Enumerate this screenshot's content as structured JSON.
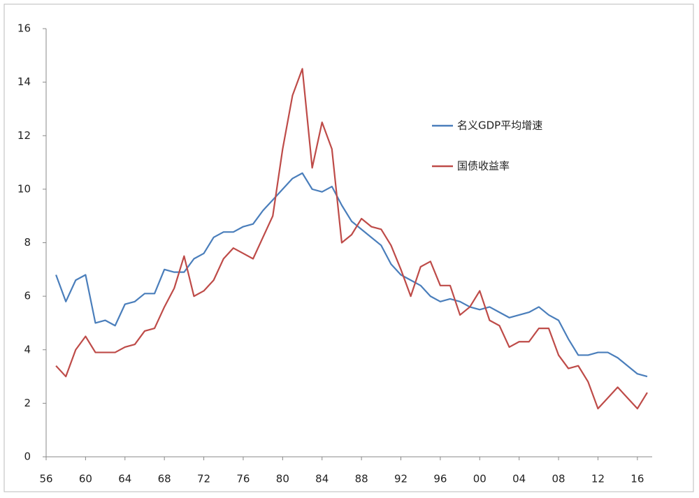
{
  "chart_data": {
    "type": "line",
    "x": [
      1957,
      1958,
      1959,
      1960,
      1961,
      1962,
      1963,
      1964,
      1965,
      1966,
      1967,
      1968,
      1969,
      1970,
      1971,
      1972,
      1973,
      1974,
      1975,
      1976,
      1977,
      1978,
      1979,
      1980,
      1981,
      1982,
      1983,
      1984,
      1985,
      1986,
      1987,
      1988,
      1989,
      1990,
      1991,
      1992,
      1993,
      1994,
      1995,
      1996,
      1997,
      1998,
      1999,
      2000,
      2001,
      2002,
      2003,
      2004,
      2005,
      2006,
      2007,
      2008,
      2009,
      2010,
      2011,
      2012,
      2013,
      2014,
      2015,
      2016,
      2017
    ],
    "series": [
      {
        "name": "名义GDP平均增速",
        "color": "#4a7ebb",
        "values": [
          6.8,
          5.8,
          6.6,
          6.8,
          5.0,
          5.1,
          4.9,
          5.7,
          5.8,
          6.1,
          6.1,
          7.0,
          6.9,
          6.9,
          7.4,
          7.6,
          8.2,
          8.4,
          8.4,
          8.6,
          8.7,
          9.2,
          9.6,
          10.0,
          10.4,
          10.6,
          10.0,
          9.9,
          10.1,
          9.4,
          8.8,
          8.5,
          8.2,
          7.9,
          7.2,
          6.8,
          6.6,
          6.4,
          6.0,
          5.8,
          5.9,
          5.8,
          5.6,
          5.5,
          5.6,
          5.4,
          5.2,
          5.3,
          5.4,
          5.6,
          5.3,
          5.1,
          4.4,
          3.8,
          3.8,
          3.9,
          3.9,
          3.7,
          3.4,
          3.1,
          3.0
        ]
      },
      {
        "name": "国债收益率",
        "color": "#be4b48",
        "values": [
          3.4,
          3.0,
          4.0,
          4.5,
          3.9,
          3.9,
          3.9,
          4.1,
          4.2,
          4.7,
          4.8,
          5.6,
          6.3,
          7.5,
          6.0,
          6.2,
          6.6,
          7.4,
          7.8,
          7.6,
          7.4,
          8.2,
          9.0,
          11.5,
          13.5,
          14.5,
          10.8,
          12.5,
          11.5,
          8.0,
          8.3,
          8.9,
          8.6,
          8.5,
          7.9,
          7.0,
          6.0,
          7.1,
          7.3,
          6.4,
          6.4,
          5.3,
          5.6,
          6.2,
          5.1,
          4.9,
          4.1,
          4.3,
          4.3,
          4.8,
          4.8,
          3.8,
          3.3,
          3.4,
          2.8,
          1.8,
          2.2,
          2.6,
          2.2,
          1.8,
          2.4
        ]
      }
    ],
    "xlim": [
      1956,
      2017.5
    ],
    "xticks": [
      {
        "value": 1956,
        "label": "56"
      },
      {
        "value": 1960,
        "label": "60"
      },
      {
        "value": 1964,
        "label": "64"
      },
      {
        "value": 1968,
        "label": "68"
      },
      {
        "value": 1972,
        "label": "72"
      },
      {
        "value": 1976,
        "label": "76"
      },
      {
        "value": 1980,
        "label": "80"
      },
      {
        "value": 1984,
        "label": "84"
      },
      {
        "value": 1988,
        "label": "88"
      },
      {
        "value": 1992,
        "label": "92"
      },
      {
        "value": 1996,
        "label": "96"
      },
      {
        "value": 2000,
        "label": "00"
      },
      {
        "value": 2004,
        "label": "04"
      },
      {
        "value": 2008,
        "label": "08"
      },
      {
        "value": 2012,
        "label": "12"
      },
      {
        "value": 2016,
        "label": "16"
      }
    ],
    "ylim": [
      0,
      16
    ],
    "yticks": [
      0,
      2,
      4,
      6,
      8,
      10,
      12,
      14,
      16
    ],
    "grid": false
  }
}
